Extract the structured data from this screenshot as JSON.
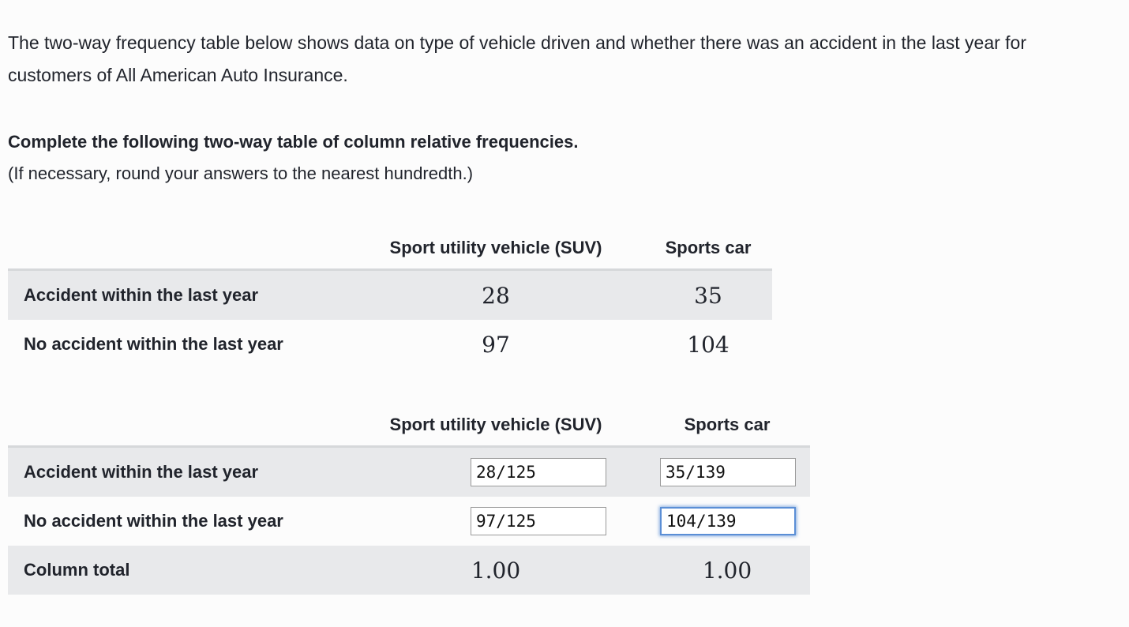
{
  "intro_text": "The two-way frequency table below shows data on type of vehicle driven and whether there was an accident in the last year for customers of All American Auto Insurance.",
  "prompt": {
    "instruction": "Complete the following two-way table of column relative frequencies.",
    "note": "(If necessary, round your answers to the nearest hundredth.)"
  },
  "frequency_table": {
    "headers": [
      "Sport utility vehicle (SUV)",
      "Sports car"
    ],
    "rows": [
      {
        "label": "Accident within the last year",
        "values": [
          "28",
          "35"
        ]
      },
      {
        "label": "No accident within the last year",
        "values": [
          "97",
          "104"
        ]
      }
    ]
  },
  "relative_table": {
    "headers": [
      "Sport utility vehicle (SUV)",
      "Sports car"
    ],
    "rows": [
      {
        "label": "Accident within the last year",
        "inputs": [
          "28/125",
          "35/139"
        ]
      },
      {
        "label": "No accident within the last year",
        "inputs": [
          "97/125",
          "104/139"
        ]
      }
    ],
    "total_row": {
      "label": "Column total",
      "values": [
        "1.00",
        "1.00"
      ]
    }
  }
}
